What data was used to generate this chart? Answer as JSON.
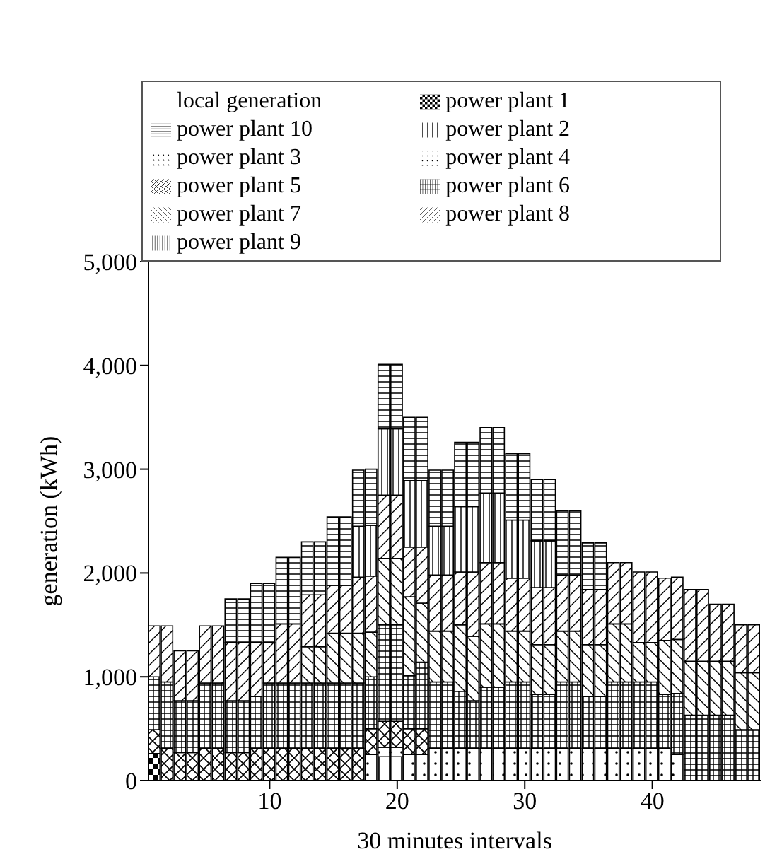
{
  "chart_data": {
    "type": "bar",
    "stacked": true,
    "xlabel": "30 minutes intervals",
    "ylabel": "generation (kWh)",
    "legend": "top",
    "grid": false,
    "x": [
      1,
      2,
      3,
      4,
      5,
      6,
      7,
      8,
      9,
      10,
      11,
      12,
      13,
      14,
      15,
      16,
      17,
      18,
      19,
      20,
      21,
      22,
      23,
      24,
      25,
      26,
      27,
      28,
      29,
      30,
      31,
      32,
      33,
      34,
      35,
      36,
      37,
      38,
      39,
      40,
      41,
      42,
      43,
      44,
      45,
      46,
      47,
      48
    ],
    "xlim": [
      0.5,
      48.5
    ],
    "xticks": [
      10,
      20,
      30,
      40
    ],
    "ylim": [
      0,
      5000
    ],
    "yticks": [
      {
        "value": 0,
        "label": "0"
      },
      {
        "value": 1000,
        "label": "1,000"
      },
      {
        "value": 2000,
        "label": "2,000"
      },
      {
        "value": 3000,
        "label": "3,000"
      },
      {
        "value": 4000,
        "label": "4,000"
      },
      {
        "value": 5000,
        "label": "5,000"
      }
    ],
    "series": [
      {
        "name": "power plant 1",
        "color": "#000000",
        "values": [
          260,
          0,
          0,
          0,
          0,
          0,
          0,
          0,
          0,
          0,
          0,
          0,
          0,
          0,
          0,
          0,
          0,
          0,
          0,
          0,
          0,
          0,
          0,
          0,
          0,
          0,
          0,
          0,
          0,
          0,
          0,
          0,
          0,
          0,
          0,
          0,
          0,
          0,
          0,
          0,
          0,
          0,
          0,
          0,
          0,
          0,
          0,
          0
        ]
      },
      {
        "name": "power plant 2",
        "color": "#000000",
        "values": [
          0,
          0,
          0,
          0,
          0,
          0,
          0,
          0,
          0,
          0,
          0,
          0,
          0,
          0,
          0,
          0,
          0,
          0,
          230,
          230,
          0,
          0,
          0,
          0,
          0,
          0,
          0,
          0,
          0,
          0,
          0,
          0,
          0,
          0,
          0,
          0,
          0,
          0,
          0,
          0,
          0,
          0,
          0,
          0,
          0,
          0,
          0,
          0
        ]
      },
      {
        "name": "power plant 3",
        "color": "#000000",
        "values": [
          0,
          0,
          0,
          0,
          0,
          0,
          0,
          0,
          0,
          0,
          0,
          0,
          0,
          0,
          0,
          0,
          0,
          0,
          0,
          0,
          0,
          0,
          0,
          0,
          0,
          0,
          0,
          0,
          0,
          0,
          0,
          0,
          0,
          0,
          0,
          0,
          0,
          0,
          0,
          0,
          0,
          0,
          0,
          0,
          0,
          0,
          0,
          0
        ]
      },
      {
        "name": "power plant 4",
        "color": "#000000",
        "values": [
          0,
          0,
          0,
          0,
          0,
          0,
          0,
          0,
          0,
          0,
          0,
          0,
          0,
          0,
          0,
          0,
          0,
          250,
          90,
          90,
          250,
          250,
          310,
          310,
          310,
          310,
          310,
          310,
          310,
          310,
          310,
          310,
          310,
          310,
          310,
          310,
          310,
          310,
          310,
          310,
          310,
          250,
          0,
          0,
          0,
          0,
          0,
          0
        ]
      },
      {
        "name": "power plant 5",
        "color": "#000000",
        "values": [
          230,
          310,
          270,
          270,
          310,
          310,
          270,
          270,
          310,
          310,
          310,
          310,
          310,
          310,
          310,
          310,
          310,
          250,
          250,
          250,
          250,
          250,
          0,
          0,
          0,
          0,
          0,
          0,
          0,
          0,
          0,
          0,
          0,
          0,
          0,
          0,
          0,
          0,
          0,
          0,
          0,
          0,
          0,
          0,
          0,
          0,
          0,
          0
        ]
      },
      {
        "name": "power plant 6",
        "color": "#000000",
        "values": [
          510,
          640,
          500,
          500,
          630,
          630,
          500,
          500,
          500,
          630,
          630,
          630,
          630,
          630,
          630,
          630,
          630,
          500,
          930,
          930,
          510,
          640,
          640,
          640,
          550,
          460,
          590,
          590,
          640,
          640,
          520,
          520,
          640,
          640,
          500,
          500,
          640,
          640,
          640,
          640,
          520,
          590,
          630,
          630,
          630,
          630,
          490,
          490
        ]
      },
      {
        "name": "power plant 7",
        "color": "#000000",
        "values": [
          0,
          0,
          0,
          0,
          0,
          0,
          0,
          0,
          0,
          0,
          0,
          0,
          350,
          350,
          480,
          480,
          480,
          430,
          640,
          640,
          760,
          570,
          490,
          490,
          640,
          620,
          610,
          610,
          490,
          490,
          480,
          480,
          490,
          490,
          500,
          500,
          560,
          560,
          380,
          380,
          520,
          520,
          520,
          520,
          520,
          520,
          550,
          550
        ]
      },
      {
        "name": "power plant 8",
        "color": "#000000",
        "values": [
          490,
          540,
          480,
          480,
          550,
          550,
          560,
          560,
          520,
          390,
          570,
          570,
          500,
          500,
          460,
          460,
          540,
          540,
          610,
          610,
          480,
          540,
          540,
          540,
          510,
          620,
          590,
          590,
          510,
          510,
          550,
          550,
          540,
          540,
          530,
          530,
          590,
          590,
          680,
          680,
          600,
          600,
          690,
          690,
          550,
          550,
          460,
          460
        ]
      },
      {
        "name": "power plant 9",
        "color": "#000000",
        "values": [
          0,
          0,
          0,
          0,
          0,
          0,
          0,
          0,
          0,
          0,
          0,
          0,
          0,
          0,
          0,
          0,
          490,
          490,
          640,
          640,
          640,
          640,
          470,
          470,
          630,
          630,
          670,
          670,
          560,
          560,
          450,
          450,
          0,
          0,
          0,
          0,
          0,
          0,
          0,
          0,
          0,
          0,
          0,
          0,
          0,
          0,
          0,
          0
        ]
      },
      {
        "name": "power plant 10",
        "color": "#000000",
        "values": [
          0,
          0,
          0,
          0,
          0,
          0,
          420,
          420,
          570,
          570,
          640,
          640,
          510,
          510,
          660,
          660,
          540,
          540,
          620,
          620,
          610,
          610,
          540,
          540,
          620,
          620,
          630,
          630,
          640,
          640,
          590,
          590,
          620,
          620,
          450,
          450,
          0,
          0,
          0,
          0,
          0,
          0,
          0,
          0,
          0,
          0,
          0,
          0
        ]
      },
      {
        "name": "local generation",
        "color": "#000000",
        "values": [
          0,
          0,
          0,
          0,
          0,
          0,
          0,
          0,
          0,
          0,
          0,
          0,
          0,
          0,
          0,
          0,
          0,
          0,
          0,
          0,
          0,
          0,
          0,
          0,
          0,
          0,
          0,
          0,
          0,
          0,
          0,
          0,
          0,
          0,
          0,
          0,
          0,
          0,
          0,
          0,
          0,
          0,
          0,
          0,
          0,
          0,
          0,
          0
        ]
      }
    ]
  }
}
